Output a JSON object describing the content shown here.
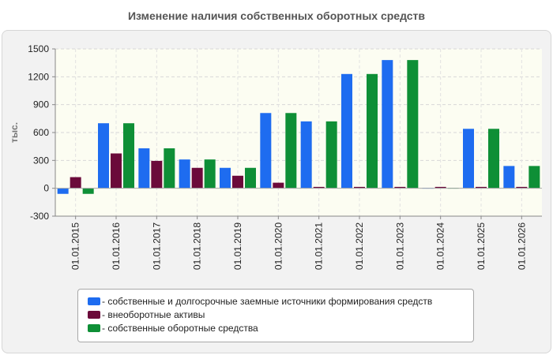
{
  "title": "Изменение наличия собственных оборотных средств",
  "chart_data": {
    "type": "bar",
    "title": "Изменение наличия собственных оборотных средств",
    "ylabel": "тыс.",
    "xlabel": "",
    "ylim": [
      -300,
      1500
    ],
    "yticks": [
      -300,
      0,
      300,
      600,
      900,
      1200,
      1500
    ],
    "grid": true,
    "legend_position": "bottom",
    "categories": [
      "01.01.2015",
      "01.01.2016",
      "01.01.2017",
      "01.01.2018",
      "01.01.2019",
      "01.01.2020",
      "01.01.2021",
      "01.01.2022",
      "01.01.2023",
      "01.01.2024",
      "01.01.2025",
      "01.01.2026"
    ],
    "series": [
      {
        "name": "- собственные и долгосрочные заемные источники формирования средств",
        "color": "#1e6cf0",
        "values": [
          -60,
          700,
          430,
          310,
          220,
          810,
          720,
          1230,
          1380,
          5,
          640,
          240
        ]
      },
      {
        "name": "- внеоборотные активы",
        "color": "#6b0a3a",
        "values": [
          120,
          375,
          295,
          220,
          135,
          60,
          15,
          15,
          15,
          15,
          15,
          15
        ]
      },
      {
        "name": "- собственные оборотные средства",
        "color": "#0e8f36",
        "values": [
          -60,
          700,
          430,
          310,
          220,
          810,
          720,
          1230,
          1380,
          5,
          640,
          240
        ]
      }
    ]
  }
}
